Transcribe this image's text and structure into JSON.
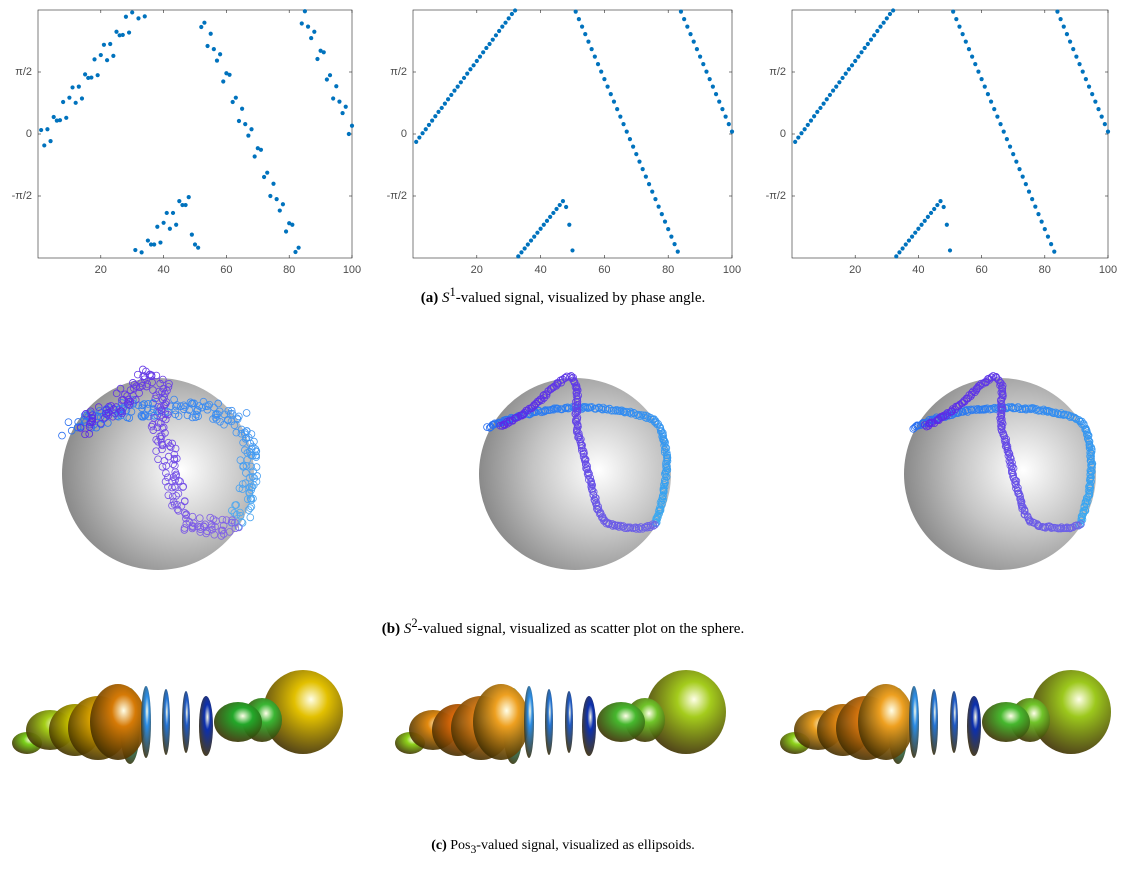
{
  "chart_data": [
    {
      "type": "scatter",
      "color": "#0072bd",
      "x": [
        1,
        2,
        3,
        4,
        5,
        6,
        7,
        8,
        9,
        10,
        11,
        12,
        13,
        14,
        15,
        16,
        17,
        18,
        19,
        20,
        21,
        22,
        23,
        24,
        25,
        26,
        27,
        28,
        29,
        30,
        31,
        32,
        33,
        34,
        35,
        36,
        37,
        38,
        39,
        40,
        41,
        42,
        43,
        44,
        45,
        46,
        47,
        48,
        49,
        50,
        51,
        52,
        53,
        54,
        55,
        56,
        57,
        58,
        59,
        60,
        61,
        62,
        63,
        64,
        65,
        66,
        67,
        68,
        69,
        70,
        71,
        72,
        73,
        74,
        75,
        76,
        77,
        78,
        79,
        80,
        81,
        82,
        83,
        84,
        85,
        86,
        87,
        88,
        89,
        90,
        91,
        92,
        93,
        94,
        95,
        96,
        97,
        98,
        99,
        100
      ],
      "values": [
        0.1,
        -0.29,
        0.12,
        -0.18,
        0.43,
        0.34,
        0.35,
        0.81,
        0.41,
        0.92,
        1.18,
        0.79,
        1.2,
        0.9,
        1.51,
        1.42,
        1.43,
        1.89,
        1.49,
        2.0,
        2.26,
        1.87,
        2.28,
        1.98,
        2.59,
        2.5,
        2.51,
        2.97,
        2.57,
        3.08,
        -2.94,
        2.93,
        -3.0,
        2.98,
        -2.7,
        -2.8,
        -2.8,
        -2.35,
        -2.75,
        -2.25,
        -2.0,
        -2.4,
        -2.0,
        -2.3,
        -1.7,
        -1.8,
        -1.8,
        -1.6,
        -2.55,
        -2.8,
        -2.88,
        2.71,
        2.82,
        2.23,
        2.54,
        2.15,
        1.86,
        2.02,
        1.33,
        1.54,
        1.5,
        0.81,
        0.92,
        0.33,
        0.64,
        0.25,
        -0.04,
        0.12,
        -0.57,
        -0.36,
        -0.4,
        -1.09,
        -0.98,
        -1.57,
        -1.26,
        -1.65,
        -1.94,
        -1.78,
        -2.47,
        -2.26,
        -2.3,
        -2.99,
        -2.88,
        2.8,
        3.11,
        2.72,
        2.43,
        2.59,
        1.9,
        2.11,
        2.07,
        1.38,
        1.49,
        0.9,
        1.21,
        0.82,
        0.53,
        0.69,
        0.0,
        0.21
      ],
      "xlim": [
        0,
        100
      ],
      "ylim": [
        -3.1416,
        3.1416
      ],
      "xticks": [
        20,
        40,
        60,
        80,
        100
      ],
      "yticks": [
        {
          "value": -1.5708,
          "label": "-π/2"
        },
        0,
        {
          "value": 1.5708,
          "label": "π/2"
        }
      ]
    },
    {
      "type": "scatter",
      "color": "#0072bd",
      "x": [
        1,
        2,
        3,
        4,
        5,
        6,
        7,
        8,
        9,
        10,
        11,
        12,
        13,
        14,
        15,
        16,
        17,
        18,
        19,
        20,
        21,
        22,
        23,
        24,
        25,
        26,
        27,
        28,
        29,
        30,
        31,
        32,
        33,
        34,
        35,
        36,
        37,
        38,
        39,
        40,
        41,
        42,
        43,
        44,
        45,
        46,
        47,
        48,
        49,
        50,
        51,
        52,
        53,
        54,
        55,
        56,
        57,
        58,
        59,
        60,
        61,
        62,
        63,
        64,
        65,
        66,
        67,
        68,
        69,
        70,
        71,
        72,
        73,
        74,
        75,
        76,
        77,
        78,
        79,
        80,
        81,
        82,
        83,
        84,
        85,
        86,
        87,
        88,
        89,
        90,
        91,
        92,
        93,
        94,
        95,
        96,
        97,
        98,
        99,
        100
      ],
      "values": [
        -0.2,
        -0.09,
        0.02,
        0.12,
        0.23,
        0.34,
        0.45,
        0.56,
        0.66,
        0.77,
        0.88,
        0.99,
        1.1,
        1.2,
        1.31,
        1.42,
        1.53,
        1.64,
        1.74,
        1.85,
        1.96,
        2.07,
        2.18,
        2.28,
        2.39,
        2.5,
        2.61,
        2.72,
        2.82,
        2.93,
        3.04,
        3.13,
        -3.1,
        -3.0,
        -2.9,
        -2.8,
        -2.7,
        -2.6,
        -2.5,
        -2.4,
        -2.3,
        -2.2,
        -2.1,
        -2.0,
        -1.9,
        -1.8,
        -1.7,
        -1.85,
        -2.3,
        -2.95,
        3.1,
        2.91,
        2.72,
        2.53,
        2.34,
        2.15,
        1.96,
        1.77,
        1.58,
        1.39,
        1.2,
        1.01,
        0.82,
        0.63,
        0.44,
        0.25,
        0.06,
        -0.13,
        -0.32,
        -0.51,
        -0.7,
        -0.89,
        -1.08,
        -1.27,
        -1.46,
        -1.65,
        -1.84,
        -2.03,
        -2.22,
        -2.41,
        -2.6,
        -2.79,
        -2.98,
        3.1,
        2.91,
        2.72,
        2.53,
        2.34,
        2.15,
        1.96,
        1.77,
        1.58,
        1.39,
        1.2,
        1.01,
        0.82,
        0.63,
        0.44,
        0.25,
        0.06
      ],
      "xlim": [
        0,
        100
      ],
      "ylim": [
        -3.1416,
        3.1416
      ],
      "xticks": [
        20,
        40,
        60,
        80,
        100
      ],
      "yticks": [
        {
          "value": -1.5708,
          "label": "-π/2"
        },
        0,
        {
          "value": 1.5708,
          "label": "π/2"
        }
      ]
    },
    {
      "type": "scatter",
      "color": "#0072bd",
      "x": [
        1,
        2,
        3,
        4,
        5,
        6,
        7,
        8,
        9,
        10,
        11,
        12,
        13,
        14,
        15,
        16,
        17,
        18,
        19,
        20,
        21,
        22,
        23,
        24,
        25,
        26,
        27,
        28,
        29,
        30,
        31,
        32,
        33,
        34,
        35,
        36,
        37,
        38,
        39,
        40,
        41,
        42,
        43,
        44,
        45,
        46,
        47,
        48,
        49,
        50,
        51,
        52,
        53,
        54,
        55,
        56,
        57,
        58,
        59,
        60,
        61,
        62,
        63,
        64,
        65,
        66,
        67,
        68,
        69,
        70,
        71,
        72,
        73,
        74,
        75,
        76,
        77,
        78,
        79,
        80,
        81,
        82,
        83,
        84,
        85,
        86,
        87,
        88,
        89,
        90,
        91,
        92,
        93,
        94,
        95,
        96,
        97,
        98,
        99,
        100
      ],
      "values": [
        -0.2,
        -0.09,
        0.02,
        0.12,
        0.23,
        0.34,
        0.45,
        0.56,
        0.66,
        0.77,
        0.88,
        0.99,
        1.1,
        1.2,
        1.31,
        1.42,
        1.53,
        1.64,
        1.74,
        1.85,
        1.96,
        2.07,
        2.18,
        2.28,
        2.39,
        2.5,
        2.61,
        2.72,
        2.82,
        2.93,
        3.04,
        3.13,
        -3.1,
        -3.0,
        -2.9,
        -2.8,
        -2.7,
        -2.6,
        -2.5,
        -2.4,
        -2.3,
        -2.2,
        -2.1,
        -2.0,
        -1.9,
        -1.8,
        -1.7,
        -1.85,
        -2.3,
        -2.95,
        3.1,
        2.91,
        2.72,
        2.53,
        2.34,
        2.15,
        1.96,
        1.77,
        1.58,
        1.39,
        1.2,
        1.01,
        0.82,
        0.63,
        0.44,
        0.25,
        0.06,
        -0.13,
        -0.32,
        -0.51,
        -0.7,
        -0.89,
        -1.08,
        -1.27,
        -1.46,
        -1.65,
        -1.84,
        -2.03,
        -2.22,
        -2.41,
        -2.6,
        -2.79,
        -2.98,
        3.1,
        2.91,
        2.72,
        2.53,
        2.34,
        2.15,
        1.96,
        1.77,
        1.58,
        1.39,
        1.2,
        1.01,
        0.82,
        0.63,
        0.44,
        0.25,
        0.06
      ],
      "xlim": [
        0,
        100
      ],
      "ylim": [
        -3.1416,
        3.1416
      ],
      "xticks": [
        20,
        40,
        60,
        80,
        100
      ],
      "yticks": [
        {
          "value": -1.5708,
          "label": "-π/2"
        },
        0,
        {
          "value": 1.5708,
          "label": "π/2"
        }
      ]
    }
  ],
  "captions": [
    {
      "label": "(a)",
      "symbol": "S",
      "script": "1",
      "text": "-valued signal, visualized by phase angle."
    },
    {
      "label": "(b)",
      "symbol": "S",
      "script": "2",
      "text": "-valued signal, visualized as scatter plot on the sphere."
    },
    {
      "label": "(c)",
      "symbol": "Pos",
      "script": "3",
      "text": "-valued signal, visualized as ellipsoids."
    }
  ]
}
